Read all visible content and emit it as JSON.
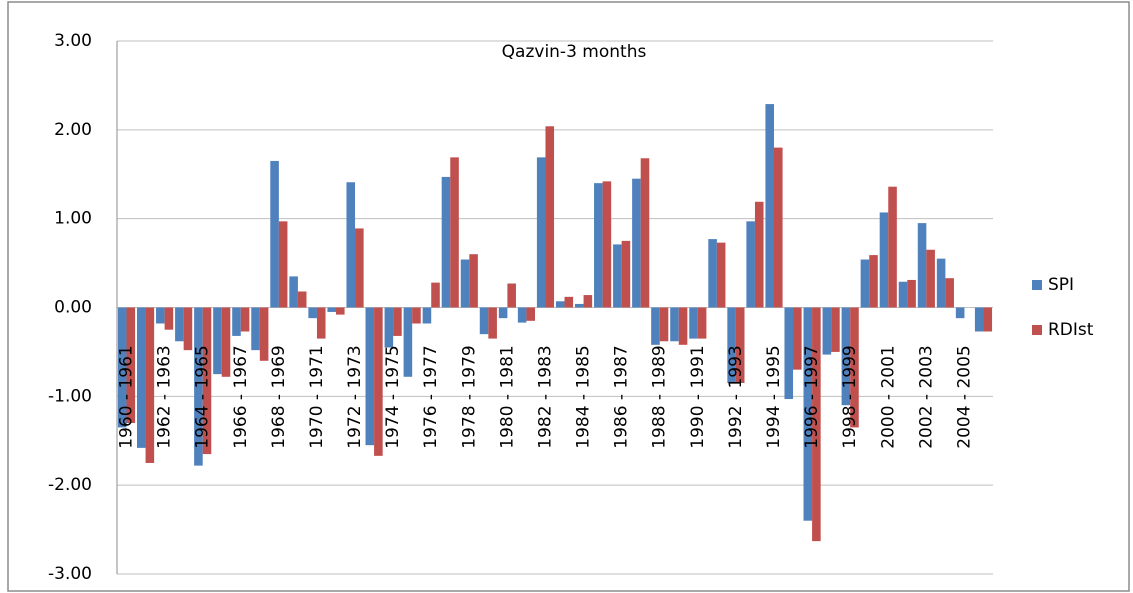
{
  "chart_data": {
    "type": "bar",
    "title": "Qazvin-3 months",
    "categories": [
      "1960 - 1961",
      null,
      "1962 - 1963",
      null,
      "1964 - 1965",
      null,
      "1966 - 1967",
      null,
      "1968 - 1969",
      null,
      "1970 - 1971",
      null,
      "1972 - 1973",
      null,
      "1974 - 1975",
      null,
      "1976 - 1977",
      null,
      "1978 - 1979",
      null,
      "1980 - 1981",
      null,
      "1982 - 1983",
      null,
      "1984 - 1985",
      null,
      "1986 - 1987",
      null,
      "1988 - 1989",
      null,
      "1990 - 1991",
      null,
      "1992 - 1993",
      null,
      "1994 - 1995",
      null,
      "1996 - 1997",
      null,
      "1998 - 1999",
      null,
      "2000 - 2001",
      null,
      "2002 - 2003",
      null,
      "2004 - 2005",
      null
    ],
    "series": [
      {
        "name": "SPI",
        "color": "#4f81bd",
        "values": [
          -1.35,
          -1.58,
          -0.18,
          -0.38,
          -1.78,
          -0.75,
          -0.32,
          -0.48,
          1.65,
          0.35,
          -0.12,
          -0.05,
          1.41,
          -1.55,
          -0.45,
          -0.78,
          -0.18,
          1.47,
          0.54,
          -0.3,
          -0.12,
          -0.17,
          1.69,
          0.07,
          0.04,
          1.4,
          0.71,
          1.45,
          -0.42,
          -0.38,
          -0.35,
          0.77,
          -0.85,
          0.97,
          2.29,
          -1.03,
          -2.4,
          -0.53,
          -1.1,
          0.54,
          1.07,
          0.29,
          0.95,
          0.55,
          -0.12,
          -0.27
        ]
      },
      {
        "name": "RDIst",
        "color": "#c0504d",
        "values": [
          -1.3,
          -1.75,
          -0.25,
          -0.48,
          -1.65,
          -0.78,
          -0.27,
          -0.6,
          0.97,
          0.18,
          -0.35,
          -0.08,
          0.89,
          -1.67,
          -0.32,
          -0.18,
          0.28,
          1.69,
          0.6,
          -0.35,
          0.27,
          -0.15,
          2.04,
          0.12,
          0.14,
          1.42,
          0.75,
          1.68,
          -0.38,
          -0.42,
          -0.35,
          0.73,
          -0.85,
          1.19,
          1.8,
          -0.7,
          -2.63,
          -0.5,
          -1.35,
          0.59,
          1.36,
          0.31,
          0.65,
          0.33,
          0,
          -0.27
        ]
      }
    ],
    "ylim": [
      -3,
      3
    ],
    "yticks": [
      {
        "value": -3,
        "label": "-3.00"
      },
      {
        "value": -2,
        "label": "-2.00"
      },
      {
        "value": -1,
        "label": "-1.00"
      },
      {
        "value": 0,
        "label": "0.00"
      },
      {
        "value": 1,
        "label": "1.00"
      },
      {
        "value": 2,
        "label": "2.00"
      },
      {
        "value": 3,
        "label": "3.00"
      }
    ],
    "grid": true,
    "legend": "right"
  }
}
